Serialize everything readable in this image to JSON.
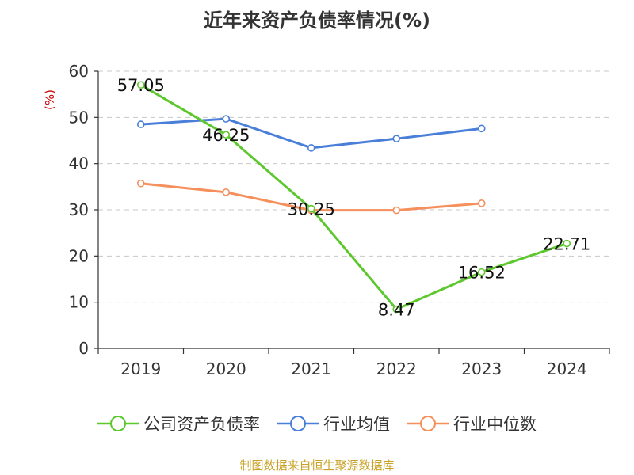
{
  "chart_data": {
    "type": "line",
    "title": "近年来资产负债率情况(%)",
    "ylabel": "(%)",
    "xlabel": "",
    "categories": [
      "2019",
      "2020",
      "2021",
      "2022",
      "2023",
      "2024"
    ],
    "ylim": [
      0,
      60
    ],
    "yticks": [
      0,
      10,
      20,
      30,
      40,
      50,
      60
    ],
    "grid": true,
    "legend_position": "bottom",
    "series": [
      {
        "name": "公司资产负债率",
        "color": "#5cc82e",
        "values": [
          57.05,
          46.25,
          30.25,
          8.47,
          16.52,
          22.71
        ],
        "labels": [
          "57.05",
          "46.25",
          "30.25",
          "8.47",
          "16.52",
          "22.71"
        ]
      },
      {
        "name": "行业均值",
        "color": "#4a7fd9",
        "values": [
          48.5,
          49.7,
          43.4,
          45.4,
          47.6,
          null
        ]
      },
      {
        "name": "行业中位数",
        "color": "#f58f5b",
        "values": [
          35.7,
          33.8,
          29.9,
          29.9,
          31.4,
          null
        ]
      }
    ]
  },
  "footer": {
    "source": "制图数据来自恒生聚源数据库"
  }
}
